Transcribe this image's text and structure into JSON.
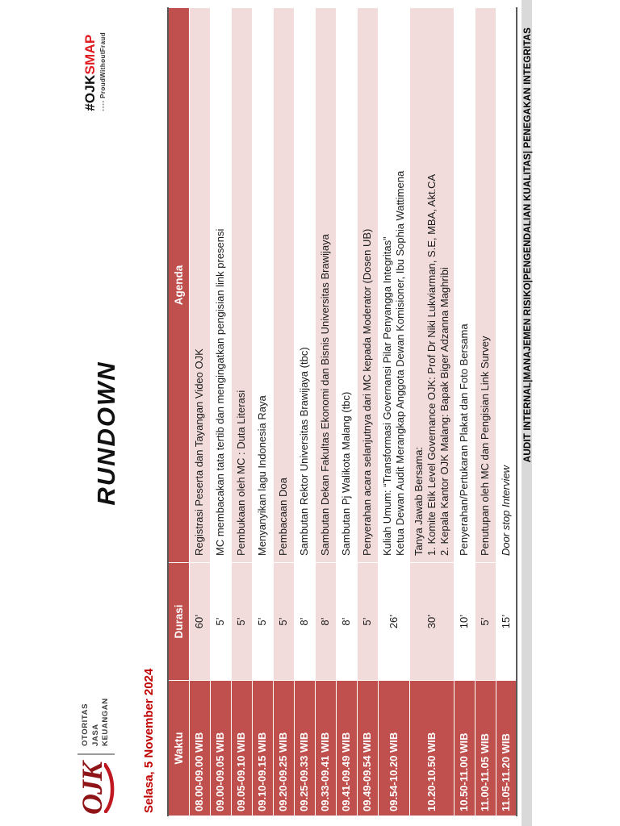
{
  "page": {
    "title": "RUNDOWN",
    "date": "Selasa,  5 November 2024"
  },
  "logo": {
    "acronym": "OJK",
    "line1": "OTORITAS",
    "line2": "JASA",
    "line3": "KEUANGAN"
  },
  "badge": {
    "hashtag_prefix": "#OJK",
    "hashtag_accent": "SMAP",
    "squares_icon": "▪▪▪▪",
    "tagline": "ProudWithoutFraud"
  },
  "table": {
    "headers": [
      "Waktu",
      "Durasi",
      "Agenda"
    ],
    "rows": [
      {
        "waktu": "08.00-09.00 WIB",
        "durasi": "60’",
        "agenda": [
          "Registrasi Peserta  dan Tayangan Video OJK"
        ]
      },
      {
        "waktu": "09.00-09.05 WIB",
        "durasi": "5’",
        "agenda": [
          "MC  membacakan tata tertib dan mengingatkan pengisian link presensi"
        ]
      },
      {
        "waktu": "09.05-09.10 WIB",
        "durasi": "5’",
        "agenda": [
          "Pembukaan oleh MC : Duta Literasi"
        ]
      },
      {
        "waktu": "09.10-09.15 WIB",
        "durasi": "5’",
        "agenda": [
          "Menyanyikan lagu Indonesia Raya"
        ]
      },
      {
        "waktu": "09.20-09.25 WIB",
        "durasi": "5’",
        "agenda": [
          "Pembacaan Doa"
        ]
      },
      {
        "waktu": "09.25-09.33 WIB",
        "durasi": "8’",
        "agenda": [
          "Sambutan Rektor Universitas Brawijaya (tbc)"
        ]
      },
      {
        "waktu": "09.33-09.41 WIB",
        "durasi": "8’",
        "agenda": [
          "Sambutan Dekan Fakultas Ekonomi dan Bisnis Universitas Brawijaya"
        ]
      },
      {
        "waktu": "09.41-09.49 WIB",
        "durasi": "8’",
        "agenda": [
          "Sambutan Pj Walikota Malang (tbc)"
        ]
      },
      {
        "waktu": "09.49-09.54 WIB",
        "durasi": "5’",
        "agenda": [
          "Penyerahan acara selanjutnya dari MC kepada Moderator (Dosen UB)"
        ]
      },
      {
        "waktu": "09.54-10.20 WIB",
        "durasi": "26’",
        "agenda": [
          "Kuliah Umum: “Transformasi Governansi Pilar Penyangga Integritas”",
          "Ketua Dewan Audit Merangkap Anggota Dewan Komisioner, Ibu Sophia Wattimena"
        ]
      },
      {
        "waktu": "10.20-10.50 WIB",
        "durasi": "30’",
        "agenda": [
          "Tanya Jawab Bersama:",
          "1.  Komite Etik Level Governance OJK: Prof Dr Niki Lukviarman, S.E, MBA, Akt.CA",
          "2.  Kepala Kantor OJK Malang: Bapak Biger Adzanna Maghribi"
        ]
      },
      {
        "waktu": "10.50-11.00 WIB",
        "durasi": "10’",
        "agenda": [
          "Penyerahan/Pertukaran Plakat dan Foto Bersama"
        ]
      },
      {
        "waktu": "11.00-11.05 WIB",
        "durasi": "5’",
        "agenda": [
          "Penutupan  oleh MC dan Pengisian Link Survey"
        ]
      },
      {
        "waktu": "11.05-11.20 WIB",
        "durasi": "15’",
        "agenda": [
          "Door stop Interview"
        ],
        "italic": true
      }
    ]
  },
  "footer": {
    "text": "AUDIT INTERNAL|MANAJEMEN RISIKO|PENGENDALIAN KUALITAS| PENEGAKAN INTEGRITAS"
  },
  "colors": {
    "header_red": "#c0504d",
    "band_pink": "#f2dcdb",
    "date_red": "#c00000",
    "accent_red": "#e01b22",
    "stripe_gray": "#d9d9d9"
  }
}
